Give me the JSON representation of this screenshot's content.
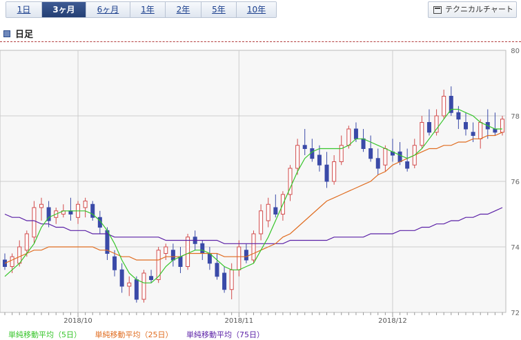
{
  "tabs": [
    {
      "label": "1日",
      "active": false
    },
    {
      "label": "3ヶ月",
      "active": true
    },
    {
      "label": "6ヶ月",
      "active": false
    },
    {
      "label": "1年",
      "active": false
    },
    {
      "label": "2年",
      "active": false
    },
    {
      "label": "5年",
      "active": false
    },
    {
      "label": "10年",
      "active": false
    }
  ],
  "technical_button": {
    "label": "テクニカルチャート",
    "icon": "chart-window-icon"
  },
  "section": {
    "title": "日足",
    "icon": "square-bullet-icon"
  },
  "colors": {
    "up_candle": "#d24a4a",
    "down_candle": "#3a4aa8",
    "ma5": "#36c52a",
    "ma25": "#e06c1f",
    "ma75": "#5a1fa6",
    "grid": "#cccccc",
    "plot_bg": "#f7f7f7"
  },
  "chart_data": {
    "type": "candlestick",
    "ylim": [
      72,
      80
    ],
    "y_ticks": [
      "72",
      "74",
      "76",
      "78",
      "80"
    ],
    "x_labels": [
      "2018/10",
      "2018/11",
      "2018/12"
    ],
    "x_label_positions": [
      10,
      32,
      53
    ],
    "legend": [
      {
        "label": "単純移動平均（5日）",
        "color": "#36c52a"
      },
      {
        "label": "単純移動平均（25日）",
        "color": "#e06c1f"
      },
      {
        "label": "単純移動平均（75日）",
        "color": "#5a1fa6"
      }
    ],
    "ohlc": [
      [
        73.6,
        73.8,
        73.3,
        73.4
      ],
      [
        73.4,
        73.8,
        73.2,
        73.7
      ],
      [
        73.5,
        74.2,
        73.4,
        74.0
      ],
      [
        73.9,
        74.5,
        73.7,
        74.4
      ],
      [
        74.3,
        75.4,
        74.1,
        75.2
      ],
      [
        75.2,
        75.5,
        74.8,
        75.3
      ],
      [
        75.2,
        75.4,
        74.6,
        74.8
      ],
      [
        74.9,
        75.2,
        74.7,
        75.1
      ],
      [
        75.0,
        75.3,
        74.9,
        75.1
      ],
      [
        75.1,
        75.5,
        74.8,
        75.0
      ],
      [
        74.9,
        75.4,
        74.7,
        75.3
      ],
      [
        75.2,
        75.5,
        74.9,
        75.4
      ],
      [
        75.3,
        75.4,
        74.8,
        74.9
      ],
      [
        74.9,
        75.1,
        74.4,
        74.6
      ],
      [
        74.5,
        74.6,
        73.6,
        73.8
      ],
      [
        73.7,
        73.9,
        73.1,
        73.3
      ],
      [
        73.3,
        73.5,
        72.6,
        72.8
      ],
      [
        72.8,
        73.1,
        72.5,
        72.9
      ],
      [
        73.0,
        73.1,
        72.3,
        72.4
      ],
      [
        72.4,
        73.3,
        72.3,
        73.2
      ],
      [
        73.1,
        73.3,
        72.9,
        73.0
      ],
      [
        73.0,
        74.0,
        72.9,
        73.9
      ],
      [
        73.8,
        74.1,
        73.6,
        74.0
      ],
      [
        73.9,
        74.1,
        73.4,
        73.6
      ],
      [
        73.7,
        74.0,
        73.2,
        73.4
      ],
      [
        73.4,
        74.4,
        73.3,
        74.3
      ],
      [
        74.3,
        74.5,
        73.9,
        74.1
      ],
      [
        74.1,
        74.2,
        73.6,
        73.8
      ],
      [
        73.8,
        74.0,
        73.3,
        73.5
      ],
      [
        73.5,
        73.8,
        73.0,
        73.1
      ],
      [
        73.2,
        73.4,
        72.6,
        72.7
      ],
      [
        72.7,
        73.5,
        72.4,
        73.3
      ],
      [
        73.3,
        74.2,
        73.1,
        74.0
      ],
      [
        73.9,
        74.1,
        73.5,
        73.6
      ],
      [
        73.6,
        74.5,
        73.5,
        74.4
      ],
      [
        74.4,
        75.3,
        74.2,
        75.1
      ],
      [
        74.8,
        75.5,
        74.6,
        75.3
      ],
      [
        75.2,
        75.6,
        74.9,
        75.0
      ],
      [
        75.0,
        75.7,
        74.8,
        75.6
      ],
      [
        75.6,
        76.5,
        75.4,
        76.4
      ],
      [
        76.4,
        77.3,
        76.2,
        77.1
      ],
      [
        77.1,
        77.6,
        76.8,
        77.0
      ],
      [
        77.0,
        77.3,
        76.6,
        76.7
      ],
      [
        76.8,
        77.1,
        76.3,
        76.5
      ],
      [
        76.5,
        76.9,
        75.8,
        76.0
      ],
      [
        76.0,
        76.8,
        75.9,
        76.6
      ],
      [
        76.6,
        77.4,
        76.5,
        77.1
      ],
      [
        77.1,
        77.7,
        77.0,
        77.6
      ],
      [
        77.6,
        77.8,
        77.2,
        77.3
      ],
      [
        77.3,
        77.6,
        76.9,
        77.0
      ],
      [
        77.0,
        77.4,
        76.6,
        76.7
      ],
      [
        76.7,
        77.0,
        76.2,
        76.4
      ],
      [
        76.5,
        77.1,
        76.3,
        77.0
      ],
      [
        76.9,
        77.3,
        76.6,
        76.8
      ],
      [
        76.9,
        77.2,
        76.5,
        76.6
      ],
      [
        76.6,
        77.0,
        76.3,
        76.4
      ],
      [
        76.5,
        77.3,
        76.4,
        77.1
      ],
      [
        77.1,
        78.0,
        77.0,
        77.8
      ],
      [
        77.8,
        78.2,
        77.4,
        77.5
      ],
      [
        77.5,
        78.2,
        77.4,
        78.0
      ],
      [
        78.0,
        78.8,
        77.9,
        78.6
      ],
      [
        78.6,
        78.9,
        78.0,
        78.1
      ],
      [
        78.1,
        78.3,
        77.6,
        77.9
      ],
      [
        77.8,
        78.1,
        77.4,
        77.6
      ],
      [
        77.5,
        77.8,
        77.2,
        77.4
      ],
      [
        77.3,
        77.9,
        77.0,
        77.8
      ],
      [
        77.8,
        78.2,
        77.3,
        77.6
      ],
      [
        77.6,
        78.1,
        77.4,
        77.5
      ],
      [
        77.5,
        78.0,
        77.4,
        77.9
      ]
    ],
    "ma5": [
      73.1,
      73.3,
      73.5,
      73.8,
      74.1,
      74.6,
      74.9,
      75.0,
      75.1,
      75.1,
      75.1,
      75.1,
      75.0,
      74.8,
      74.5,
      74.1,
      73.6,
      73.2,
      73.0,
      72.9,
      72.9,
      73.1,
      73.4,
      73.6,
      73.7,
      73.8,
      73.9,
      73.9,
      73.8,
      73.6,
      73.4,
      73.3,
      73.3,
      73.4,
      73.5,
      73.9,
      74.3,
      74.8,
      75.3,
      75.8,
      76.3,
      76.7,
      76.9,
      77.0,
      77.0,
      77.0,
      77.0,
      77.1,
      77.3,
      77.3,
      77.2,
      77.1,
      77.0,
      76.9,
      76.8,
      76.7,
      76.8,
      77.0,
      77.3,
      77.6,
      77.9,
      78.2,
      78.2,
      78.1,
      78.0,
      77.8,
      77.7,
      77.6,
      77.6
    ],
    "ma25": [
      73.5,
      73.6,
      73.7,
      73.8,
      73.9,
      73.9,
      74.0,
      74.0,
      74.0,
      74.0,
      74.0,
      74.0,
      74.0,
      73.9,
      73.9,
      73.8,
      73.7,
      73.7,
      73.6,
      73.6,
      73.6,
      73.6,
      73.7,
      73.7,
      73.7,
      73.8,
      73.8,
      73.8,
      73.8,
      73.8,
      73.7,
      73.7,
      73.7,
      73.7,
      73.8,
      73.9,
      74.0,
      74.1,
      74.3,
      74.4,
      74.6,
      74.8,
      75.0,
      75.2,
      75.4,
      75.5,
      75.6,
      75.7,
      75.8,
      75.9,
      76.0,
      76.2,
      76.3,
      76.5,
      76.6,
      76.7,
      76.8,
      76.9,
      77.0,
      77.0,
      77.1,
      77.1,
      77.2,
      77.2,
      77.3,
      77.3,
      77.4,
      77.4,
      77.5
    ],
    "ma75": [
      75.0,
      74.9,
      74.9,
      74.8,
      74.8,
      74.7,
      74.7,
      74.6,
      74.6,
      74.5,
      74.5,
      74.5,
      74.4,
      74.4,
      74.4,
      74.3,
      74.3,
      74.3,
      74.3,
      74.3,
      74.3,
      74.3,
      74.2,
      74.2,
      74.2,
      74.2,
      74.2,
      74.2,
      74.2,
      74.2,
      74.1,
      74.1,
      74.1,
      74.1,
      74.1,
      74.1,
      74.1,
      74.1,
      74.1,
      74.2,
      74.2,
      74.2,
      74.2,
      74.2,
      74.2,
      74.3,
      74.3,
      74.3,
      74.3,
      74.3,
      74.4,
      74.4,
      74.4,
      74.4,
      74.5,
      74.5,
      74.5,
      74.6,
      74.6,
      74.7,
      74.7,
      74.8,
      74.8,
      74.9,
      74.9,
      75.0,
      75.0,
      75.1,
      75.2
    ]
  }
}
